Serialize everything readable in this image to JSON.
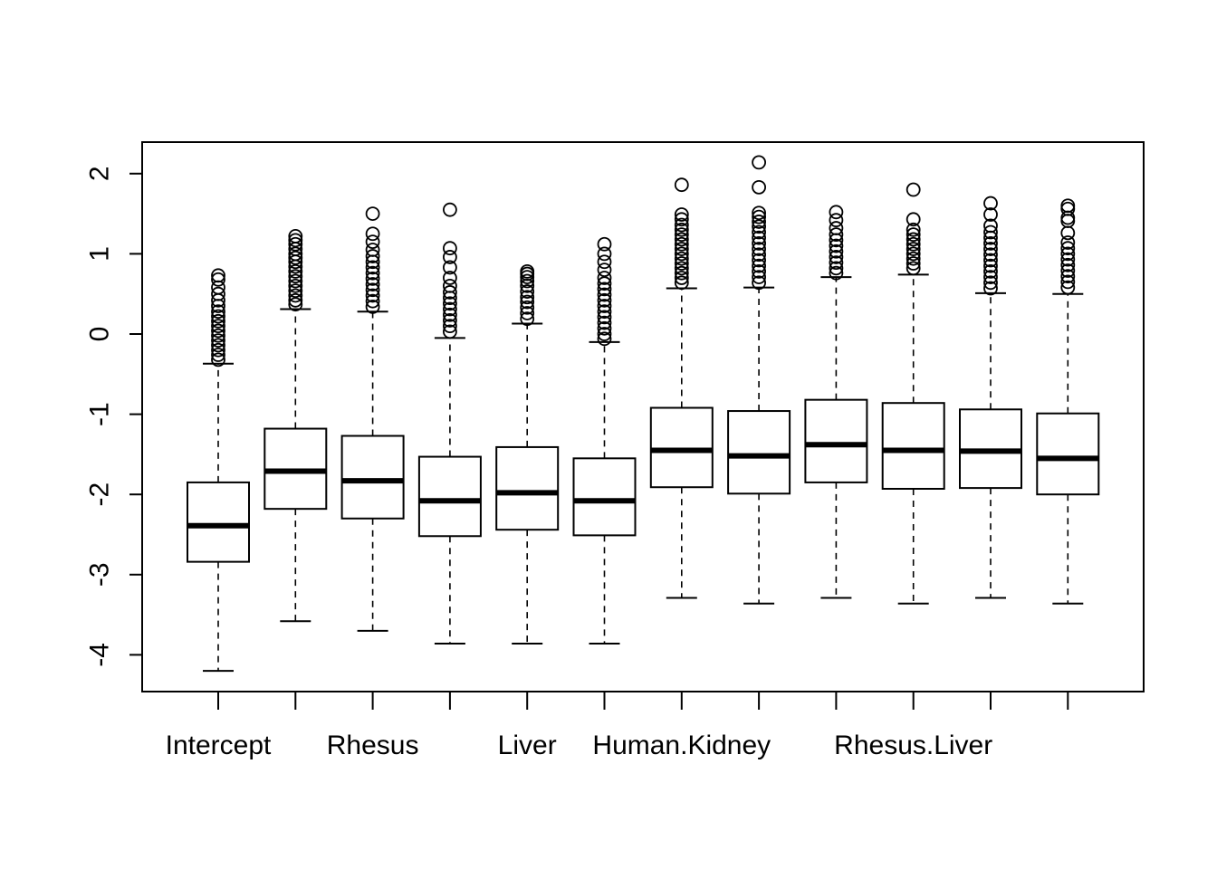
{
  "chart_data": {
    "type": "boxplot",
    "title": "",
    "xlabel": "",
    "ylabel": "",
    "ylim": [
      -4.4,
      2.4
    ],
    "yticks": [
      -4,
      -3,
      -2,
      -1,
      0,
      1,
      2
    ],
    "tick_labels": [
      "-4",
      "-3",
      "-2",
      "-1",
      "0",
      "1",
      "2"
    ],
    "category_labels": [
      "Intercept",
      "",
      "Rhesus",
      "",
      "Liver",
      "",
      "Human.Kidney",
      "",
      "",
      "Rhesus.Liver",
      "",
      ""
    ],
    "boxes": [
      {
        "whisker_low": -4.2,
        "q1": -2.84,
        "median": -2.39,
        "q3": -1.85,
        "whisker_high": -0.37,
        "outliers": [
          0.73,
          0.68,
          0.58,
          0.5,
          0.42,
          0.35,
          0.28,
          0.22,
          0.16,
          0.1,
          0.04,
          -0.02,
          -0.08,
          -0.14,
          -0.2,
          -0.26,
          -0.32
        ]
      },
      {
        "whisker_low": -3.58,
        "q1": -2.18,
        "median": -1.71,
        "q3": -1.18,
        "whisker_high": 0.31,
        "outliers": [
          1.22,
          1.17,
          1.12,
          1.06,
          1.0,
          0.95,
          0.9,
          0.84,
          0.78,
          0.72,
          0.66,
          0.6,
          0.54,
          0.48,
          0.42,
          0.37
        ]
      },
      {
        "whisker_low": -3.7,
        "q1": -2.3,
        "median": -1.83,
        "q3": -1.27,
        "whisker_high": 0.28,
        "outliers": [
          1.5,
          1.25,
          1.15,
          1.05,
          0.97,
          0.9,
          0.83,
          0.76,
          0.69,
          0.62,
          0.55,
          0.48,
          0.41,
          0.34
        ]
      },
      {
        "whisker_low": -3.86,
        "q1": -2.52,
        "median": -2.08,
        "q3": -1.53,
        "whisker_high": -0.05,
        "outliers": [
          1.55,
          1.07,
          0.96,
          0.83,
          0.7,
          0.6,
          0.52,
          0.45,
          0.38,
          0.31,
          0.24,
          0.17,
          0.1,
          0.03
        ]
      },
      {
        "whisker_low": -3.86,
        "q1": -2.44,
        "median": -1.98,
        "q3": -1.41,
        "whisker_high": 0.13,
        "outliers": [
          0.78,
          0.75,
          0.71,
          0.66,
          0.6,
          0.53,
          0.46,
          0.4,
          0.33,
          0.26,
          0.19
        ]
      },
      {
        "whisker_low": -3.86,
        "q1": -2.51,
        "median": -2.08,
        "q3": -1.55,
        "whisker_high": -0.1,
        "outliers": [
          1.12,
          1.0,
          0.9,
          0.8,
          0.7,
          0.63,
          0.56,
          0.49,
          0.42,
          0.35,
          0.28,
          0.21,
          0.14,
          0.07,
          0.0,
          -0.06
        ]
      },
      {
        "whisker_low": -3.29,
        "q1": -1.91,
        "median": -1.45,
        "q3": -0.92,
        "whisker_high": 0.57,
        "outliers": [
          1.86,
          1.49,
          1.43,
          1.36,
          1.3,
          1.24,
          1.18,
          1.12,
          1.06,
          1.0,
          0.94,
          0.88,
          0.82,
          0.76,
          0.7,
          0.64
        ]
      },
      {
        "whisker_low": -3.36,
        "q1": -1.99,
        "median": -1.52,
        "q3": -0.96,
        "whisker_high": 0.58,
        "outliers": [
          2.14,
          1.83,
          1.51,
          1.46,
          1.4,
          1.34,
          1.27,
          1.2,
          1.13,
          1.06,
          0.99,
          0.92,
          0.85,
          0.78,
          0.71,
          0.64
        ]
      },
      {
        "whisker_low": -3.29,
        "q1": -1.85,
        "median": -1.38,
        "q3": -0.82,
        "whisker_high": 0.71,
        "outliers": [
          1.52,
          1.42,
          1.32,
          1.24,
          1.17,
          1.1,
          1.03,
          0.96,
          0.89,
          0.82,
          0.76
        ]
      },
      {
        "whisker_low": -3.36,
        "q1": -1.93,
        "median": -1.45,
        "q3": -0.86,
        "whisker_high": 0.74,
        "outliers": [
          1.8,
          1.43,
          1.3,
          1.24,
          1.18,
          1.12,
          1.06,
          1.0,
          0.94,
          0.88,
          0.82
        ]
      },
      {
        "whisker_low": -3.29,
        "q1": -1.92,
        "median": -1.46,
        "q3": -0.94,
        "whisker_high": 0.51,
        "outliers": [
          1.63,
          1.49,
          1.35,
          1.27,
          1.2,
          1.13,
          1.06,
          0.99,
          0.92,
          0.85,
          0.78,
          0.71,
          0.64,
          0.57
        ]
      },
      {
        "whisker_low": -3.36,
        "q1": -2.0,
        "median": -1.55,
        "q3": -0.99,
        "whisker_high": 0.5,
        "outliers": [
          1.6,
          1.56,
          1.45,
          1.41,
          1.26,
          1.14,
          1.07,
          1.0,
          0.93,
          0.86,
          0.79,
          0.72,
          0.65,
          0.58
        ]
      }
    ]
  }
}
